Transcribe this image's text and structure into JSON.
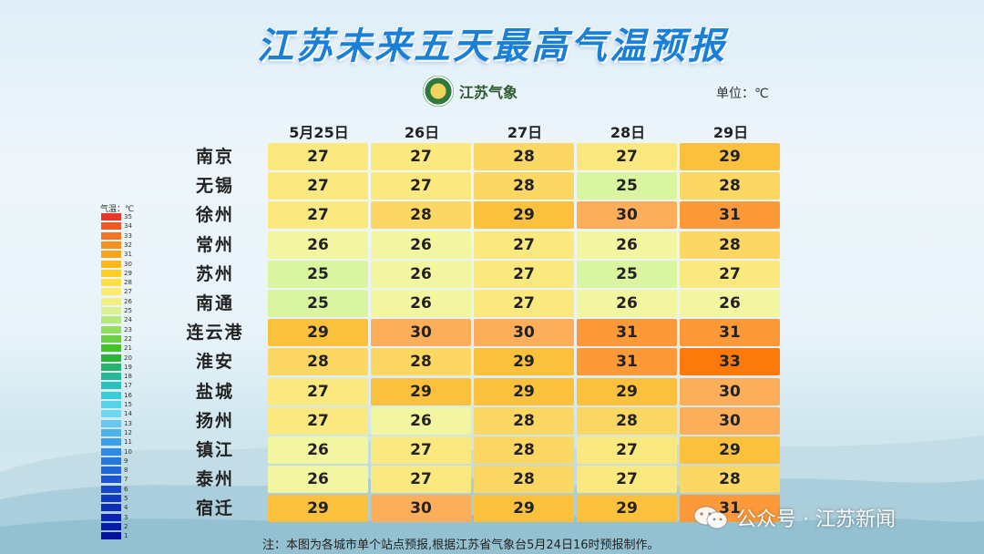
{
  "title": "江苏未来五天最高气温预报",
  "logo_text": "江苏气象",
  "unit": "单位：℃",
  "dates": [
    "5月25日",
    "26日",
    "27日",
    "28日",
    "29日"
  ],
  "cities": [
    "南京",
    "无锡",
    "徐州",
    "常州",
    "苏州",
    "南通",
    "连云港",
    "淮安",
    "盐城",
    "扬州",
    "镇江",
    "泰州",
    "宿迁"
  ],
  "temperatures": [
    [
      27,
      27,
      28,
      27,
      29
    ],
    [
      27,
      27,
      28,
      25,
      28
    ],
    [
      27,
      28,
      29,
      30,
      31
    ],
    [
      26,
      26,
      27,
      26,
      28
    ],
    [
      25,
      26,
      27,
      25,
      27
    ],
    [
      25,
      26,
      27,
      26,
      26
    ],
    [
      29,
      30,
      30,
      31,
      31
    ],
    [
      28,
      28,
      29,
      31,
      33
    ],
    [
      27,
      29,
      29,
      29,
      30
    ],
    [
      27,
      26,
      28,
      28,
      30
    ],
    [
      26,
      27,
      28,
      27,
      29
    ],
    [
      26,
      27,
      28,
      27,
      28
    ],
    [
      29,
      30,
      29,
      29,
      31
    ]
  ],
  "legend": {
    "title": "气温：℃",
    "labels": [
      "35",
      "34",
      "33",
      "32",
      "31",
      "30",
      "29",
      "28",
      "27",
      "26",
      "25",
      "24",
      "23",
      "22",
      "21",
      "20",
      "19",
      "18",
      "17",
      "16",
      "15",
      "14",
      "13",
      "12",
      "11",
      "10",
      "9",
      "8",
      "7",
      "6",
      "5",
      "4",
      "3",
      "2",
      "1"
    ]
  },
  "note": "注：本图为各城市单个站点预报,根据江苏省气象台5月24日16时预报制作。",
  "watermark": "公众号 · 江苏新闻",
  "colors": {
    "25": "#d9f5a0",
    "26": "#f3f6a0",
    "27": "#fbe87e",
    "28": "#fcd763",
    "29": "#fcc13c",
    "30": "#fcae5a",
    "31": "#fc9a3a",
    "33": "#fc7a0c"
  }
}
